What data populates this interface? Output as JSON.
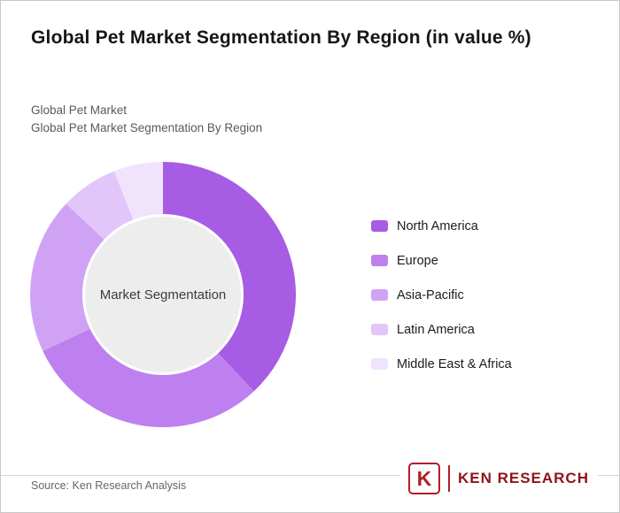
{
  "header": {
    "title": "Global Pet Market Segmentation By Region (in value %)",
    "subtitle1": "Global Pet Market",
    "subtitle2": "Global Pet Market Segmentation By Region"
  },
  "chart_data": {
    "type": "pie",
    "subtype": "donut",
    "title": "Global Pet Market Segmentation By Region (in value %)",
    "center_label": "Market Segmentation",
    "categories": [
      "North America",
      "Europe",
      "Asia-Pacific",
      "Latin America",
      "Middle East & Africa"
    ],
    "values": [
      38,
      30,
      19,
      7,
      6
    ],
    "colors": [
      "#a75ce4",
      "#bd80ee",
      "#d0a2f4",
      "#e2c6f9",
      "#f0e3fc"
    ],
    "center_fill": "#ededed",
    "legend_position": "right",
    "start_angle_deg": 0,
    "direction": "clockwise"
  },
  "footer": {
    "source": "Source: Ken Research Analysis",
    "logo_letter": "K",
    "logo_text": "KEN RESEARCH",
    "brand_red": "#b01e24"
  }
}
